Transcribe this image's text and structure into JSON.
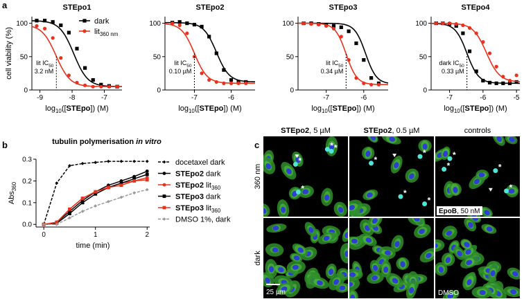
{
  "panel_labels": [
    "a",
    "b",
    "c"
  ],
  "chart_data": [
    {
      "type": "dose_response",
      "title": "STEpo1",
      "ylabel": "cell viability (%)",
      "xlabel": [
        {
          "text": "log"
        },
        {
          "text": "10",
          "sub": true
        },
        {
          "text": "(["
        },
        {
          "text": "STEpo",
          "bold": true
        },
        {
          "text": "]) (M)"
        }
      ],
      "xlim": [
        -9.25,
        -6.45
      ],
      "ylim": [
        0,
        110
      ],
      "xticks": [
        -9,
        -8,
        -7
      ],
      "yticks": [
        0,
        50,
        100
      ],
      "legend": "upper right",
      "x": [
        -9.1,
        -8.85,
        -8.6,
        -8.35,
        -8.1,
        -7.85,
        -7.6,
        -7.35,
        -7.1,
        -6.85,
        -6.6
      ],
      "series": [
        {
          "name": [
            {
              "text": "dark"
            }
          ],
          "color": "#000000",
          "marker": "square",
          "values": [
            104,
            104,
            102,
            97,
            86,
            62,
            33,
            15,
            8,
            6,
            5
          ],
          "fit": {
            "top": 104,
            "bottom": 5,
            "log_ic50": -7.95,
            "hill": 2
          }
        },
        {
          "name": [
            {
              "text": "lit"
            },
            {
              "text": "360 nm",
              "sub": true
            }
          ],
          "color": "#e8321e",
          "marker": "circle",
          "values": [
            96,
            92,
            78,
            48,
            22,
            11,
            7,
            5,
            5,
            5,
            5
          ],
          "fit": {
            "top": 98,
            "bottom": 5,
            "log_ic50": -8.5,
            "hill": 2
          }
        }
      ],
      "annotation": {
        "lines": [
          [
            {
              "text": "lit IC"
            },
            {
              "text": "50",
              "sub": true
            }
          ],
          [
            {
              "text": "3.2 nM"
            }
          ]
        ],
        "x": -8.49,
        "series": 1
      }
    },
    {
      "type": "dose_response",
      "title": "STEpo2",
      "xlabel": [
        {
          "text": "log"
        },
        {
          "text": "10",
          "sub": true
        },
        {
          "text": "(["
        },
        {
          "text": "STEpo",
          "bold": true
        },
        {
          "text": "]) (M)"
        }
      ],
      "xlim": [
        -7.8,
        -5.35
      ],
      "ylim": [
        0,
        110
      ],
      "xticks": [
        -7,
        -6
      ],
      "yticks": [
        0,
        50,
        100
      ],
      "x": [
        -7.6,
        -7.4,
        -7.2,
        -7.0,
        -6.8,
        -6.6,
        -6.4,
        -6.2,
        -6.0,
        -5.8,
        -5.6
      ],
      "series": [
        {
          "color": "#000000",
          "marker": "square",
          "values": [
            101,
            102,
            100,
            98,
            95,
            80,
            55,
            30,
            15,
            12,
            12
          ],
          "fit": {
            "top": 101,
            "bottom": 12,
            "log_ic50": -6.4,
            "hill": 2.5
          }
        },
        {
          "color": "#e8321e",
          "marker": "circle",
          "values": [
            100,
            97,
            85,
            50,
            25,
            15,
            12,
            10,
            10,
            10,
            10
          ],
          "fit": {
            "top": 100,
            "bottom": 10,
            "log_ic50": -7.0,
            "hill": 2.5
          }
        }
      ],
      "annotation": {
        "lines": [
          [
            {
              "text": "lit IC"
            },
            {
              "text": "50",
              "sub": true
            }
          ],
          [
            {
              "text": "0.10 µM"
            }
          ]
        ],
        "x": -7.0,
        "series": 1
      }
    },
    {
      "type": "dose_response",
      "title": "STEpo3",
      "xlabel": [
        {
          "text": "log"
        },
        {
          "text": "10",
          "sub": true
        },
        {
          "text": "(["
        },
        {
          "text": "STEpo",
          "bold": true
        },
        {
          "text": "]) (M)"
        }
      ],
      "xlim": [
        -7.75,
        -5.35
      ],
      "ylim": [
        0,
        110
      ],
      "xticks": [
        -7,
        -6
      ],
      "yticks": [
        0,
        50,
        100
      ],
      "x": [
        -7.6,
        -7.4,
        -7.2,
        -7.0,
        -6.8,
        -6.6,
        -6.4,
        -6.2,
        -6.0,
        -5.8,
        -5.6
      ],
      "series": [
        {
          "color": "#000000",
          "marker": "square",
          "values": [
            100,
            100,
            99,
            98,
            96,
            94,
            88,
            70,
            45,
            18,
            10
          ],
          "fit": {
            "top": 100,
            "bottom": 9,
            "log_ic50": -5.95,
            "hill": 3
          }
        },
        {
          "color": "#e8321e",
          "marker": "circle",
          "values": [
            100,
            99,
            98,
            96,
            92,
            80,
            45,
            18,
            10,
            8,
            8
          ],
          "fit": {
            "top": 100,
            "bottom": 8,
            "log_ic50": -6.47,
            "hill": 3
          }
        }
      ],
      "annotation": {
        "lines": [
          [
            {
              "text": "lit IC"
            },
            {
              "text": "50",
              "sub": true
            }
          ],
          [
            {
              "text": "0.34 µM"
            }
          ]
        ],
        "x": -6.47,
        "series": 1
      }
    },
    {
      "type": "dose_response",
      "title": "STEpo4",
      "xlabel": [
        {
          "text": "log"
        },
        {
          "text": "10",
          "sub": true
        },
        {
          "text": "(["
        },
        {
          "text": "STEpo",
          "bold": true
        },
        {
          "text": "]) (M)"
        }
      ],
      "xlim": [
        -7.55,
        -4.9
      ],
      "ylim": [
        0,
        110
      ],
      "xticks": [
        -7,
        -6,
        -5
      ],
      "yticks": [
        0,
        50,
        100
      ],
      "x": [
        -7.4,
        -7.2,
        -7.0,
        -6.8,
        -6.6,
        -6.4,
        -6.2,
        -6.0,
        -5.8,
        -5.6,
        -5.4,
        -5.2,
        -5.0
      ],
      "series": [
        {
          "color": "#000000",
          "marker": "square",
          "values": [
            100,
            100,
            99,
            96,
            85,
            58,
            28,
            14,
            11,
            10,
            10,
            10,
            12
          ],
          "fit": {
            "top": 100,
            "bottom": 10,
            "log_ic50": -6.48,
            "hill": 2.5
          }
        },
        {
          "color": "#e8321e",
          "marker": "circle",
          "values": [
            100,
            100,
            100,
            99,
            97,
            93,
            85,
            72,
            55,
            35,
            20,
            14,
            22
          ],
          "fit": {
            "top": 100,
            "bottom": 12,
            "log_ic50": -5.9,
            "hill": 2.2
          }
        }
      ],
      "annotation": {
        "lines": [
          [
            {
              "text": "dark IC"
            },
            {
              "text": "50",
              "sub": true
            }
          ],
          [
            {
              "text": "0.33 µM"
            }
          ]
        ],
        "x": -6.48,
        "series": 0
      }
    },
    {
      "type": "line",
      "title": [
        {
          "text": "tubulin polymerisation ",
          "bold": true
        },
        {
          "text": "in vitro",
          "bold": true,
          "italic": true
        }
      ],
      "xlabel": [
        {
          "text": "time (min)"
        }
      ],
      "ylabel": [
        {
          "text": "Abs"
        },
        {
          "text": "360",
          "sub": true
        }
      ],
      "xlim": [
        -0.15,
        2.05
      ],
      "ylim": [
        -0.012,
        0.3
      ],
      "xticks": [
        0,
        1,
        2
      ],
      "yticks": [
        {
          "value": 0,
          "label": "0.0"
        },
        0.1,
        0.2,
        0.3
      ],
      "legend": "right",
      "x": [
        0,
        0.25,
        0.5,
        0.75,
        1,
        1.25,
        1.5,
        1.75,
        2
      ],
      "series": [
        {
          "name": [
            {
              "text": "docetaxel dark"
            }
          ],
          "color": "#000000",
          "marker": "diamond",
          "dash": true,
          "values": [
            0,
            0.19,
            0.27,
            0.28,
            0.285,
            0.29,
            0.29,
            0.29,
            0.29
          ]
        },
        {
          "name": [
            {
              "text": "STEpo2",
              "bold": true
            },
            {
              "text": " dark"
            }
          ],
          "color": "#000000",
          "marker": "circle",
          "dash": false,
          "values": [
            0,
            0.01,
            0.06,
            0.11,
            0.15,
            0.18,
            0.2,
            0.22,
            0.245
          ]
        },
        {
          "name": [
            {
              "text": "STEpo2",
              "bold": true
            },
            {
              "text": " lit"
            },
            {
              "text": "360",
              "sub": true
            }
          ],
          "color": "#e8321e",
          "marker": "circle",
          "dash": false,
          "values": [
            0,
            0.01,
            0.07,
            0.12,
            0.15,
            0.17,
            0.19,
            0.2,
            0.215
          ]
        },
        {
          "name": [
            {
              "text": "STEpo3",
              "bold": true
            },
            {
              "text": " dark"
            }
          ],
          "color": "#000000",
          "marker": "square",
          "dash": false,
          "values": [
            0,
            0.005,
            0.05,
            0.1,
            0.14,
            0.17,
            0.19,
            0.21,
            0.23
          ]
        },
        {
          "name": [
            {
              "text": "STEpo3",
              "bold": true
            },
            {
              "text": " lit"
            },
            {
              "text": "360",
              "sub": true
            }
          ],
          "color": "#e8321e",
          "marker": "square",
          "dash": false,
          "values": [
            0,
            0.01,
            0.07,
            0.12,
            0.15,
            0.17,
            0.18,
            0.2,
            0.205
          ]
        },
        {
          "name": [
            {
              "text": "DMSO 1%, dark"
            }
          ],
          "color": "#999999",
          "marker": "diamond",
          "dash": true,
          "values": [
            0,
            0,
            0.03,
            0.06,
            0.085,
            0.105,
            0.125,
            0.145,
            0.16
          ]
        }
      ]
    }
  ],
  "micrographs": {
    "columns": [
      [
        {
          "text": "STEpo2",
          "bold": true
        },
        {
          "text": ", 5 µM"
        }
      ],
      [
        {
          "text": "STEpo2",
          "bold": true
        },
        {
          "text": ", 0.5 µM"
        }
      ],
      [
        {
          "text": "controls"
        }
      ]
    ],
    "rows": [
      "360 nm",
      "dark"
    ],
    "epob": [
      {
        "text": "EpoB",
        "bold": true
      },
      {
        "text": ", 50 nM"
      }
    ],
    "dmso": "DMSO",
    "scale": "25 µm",
    "asterisk": "*"
  }
}
